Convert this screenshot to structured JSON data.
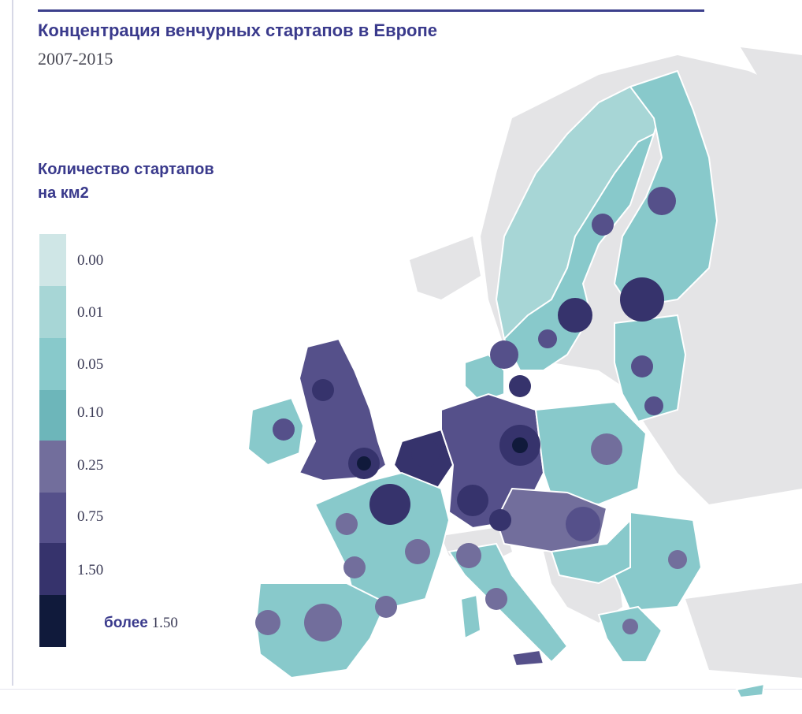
{
  "header": {
    "title": "Концентрация венчурных стартапов в Европе",
    "subtitle": "2007-2015"
  },
  "legend": {
    "title_line1": "Количество стартапов",
    "title_line2": "на км2",
    "bins": [
      {
        "color": "#cfe6e6",
        "label": "0.00"
      },
      {
        "color": "#a7d6d6",
        "label": "0.01"
      },
      {
        "color": "#88c9cb",
        "label": "0.05"
      },
      {
        "color": "#6db6ba",
        "label": "0.10"
      },
      {
        "color": "#726e9c",
        "label": "0.25"
      },
      {
        "color": "#55508a",
        "label": "0.75"
      },
      {
        "color": "#36336c",
        "label": "1.50"
      },
      {
        "color": "#101a3b"
      }
    ],
    "last_prefix": "более",
    "last_value": "1.50"
  },
  "colors": {
    "land_outside": "#e4e4e6",
    "border": "#ffffff",
    "accent": "#3a3a8c"
  }
}
